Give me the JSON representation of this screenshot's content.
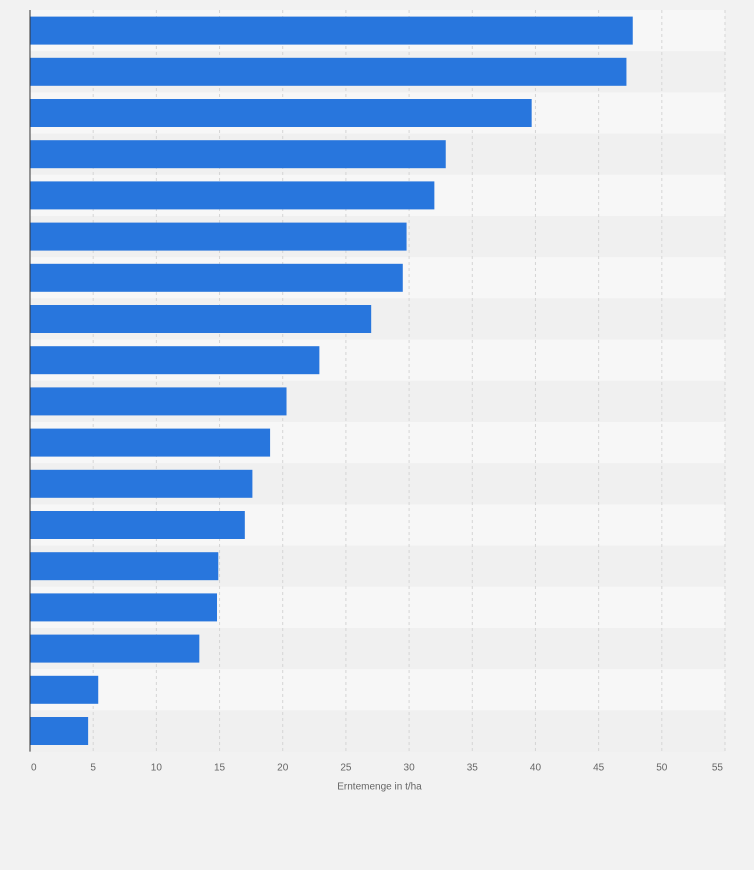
{
  "chart_data": {
    "type": "bar",
    "orientation": "horizontal",
    "title": "",
    "xlabel": "Erntemenge in t/ha",
    "ylabel": "",
    "xlim": [
      0,
      55
    ],
    "xticks": [
      0,
      5,
      10,
      15,
      20,
      25,
      30,
      35,
      40,
      45,
      50,
      55
    ],
    "grid": true,
    "legend": "none",
    "categories": [
      "",
      "",
      "",
      "",
      "",
      "",
      "",
      "",
      "",
      "",
      "",
      "",
      "",
      "",
      "",
      "",
      "",
      ""
    ],
    "values": [
      47.7,
      47.2,
      39.7,
      32.9,
      32.0,
      29.8,
      29.5,
      27.0,
      22.9,
      20.3,
      19.0,
      17.6,
      17.0,
      14.9,
      14.8,
      13.4,
      5.4,
      4.6
    ],
    "colors": {
      "bar": "#2876dd",
      "background": "#f2f2f2",
      "band_light": "#f7f7f7",
      "band_dark": "#f0f0f0",
      "grid": "#d5d5d5",
      "axis": "#333333",
      "text": "#666666"
    }
  }
}
